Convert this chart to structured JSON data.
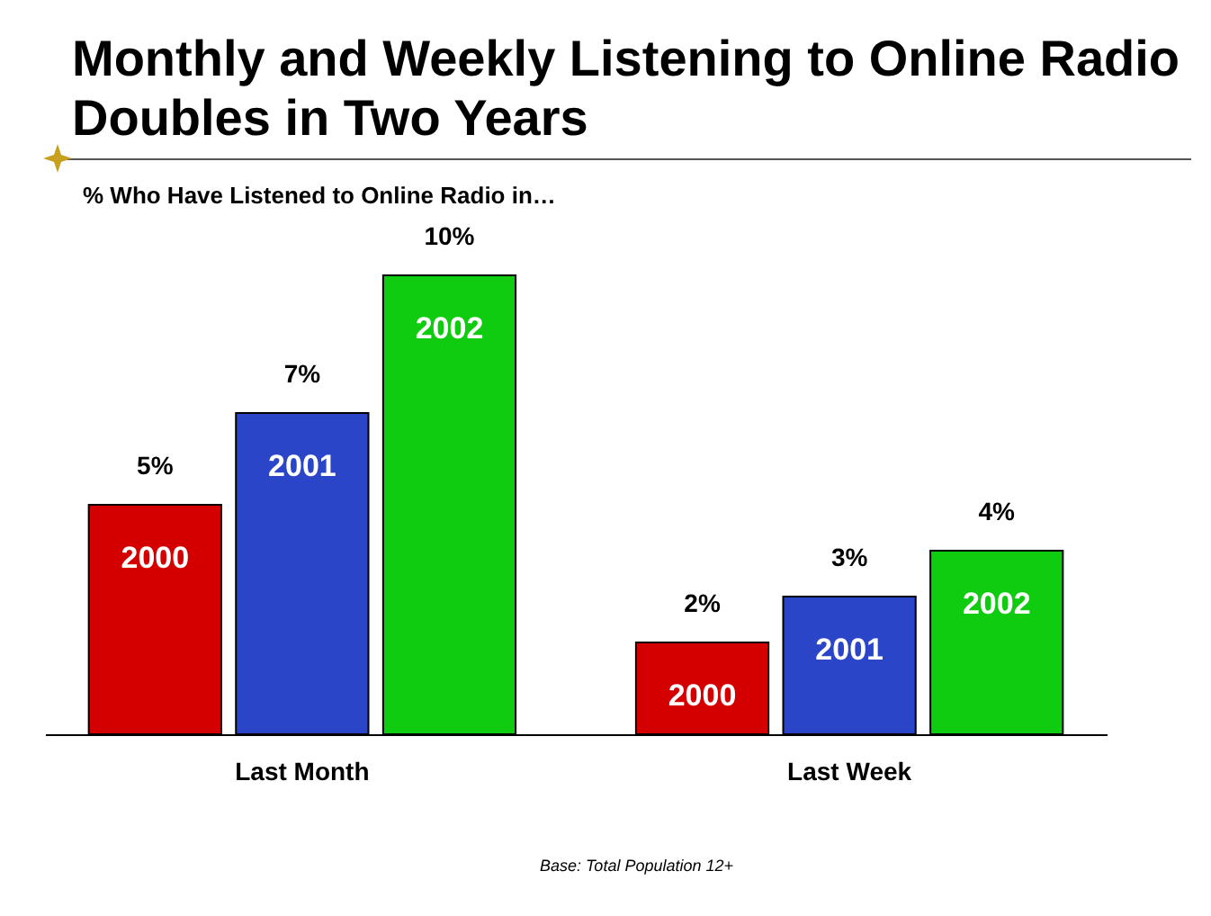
{
  "chart_data": {
    "type": "bar",
    "title": "Monthly and Weekly Listening to Online Radio Doubles in Two Years",
    "subtitle": "% Who Have Listened to Online Radio in…",
    "categories": [
      "Last Month",
      "Last Week"
    ],
    "series": [
      {
        "name": "2000",
        "color": "#d40000",
        "values": [
          5,
          2
        ],
        "value_labels": [
          "5%",
          "2%"
        ]
      },
      {
        "name": "2001",
        "color": "#2a45c8",
        "values": [
          7,
          3
        ],
        "value_labels": [
          "7%",
          "3%"
        ]
      },
      {
        "name": "2002",
        "color": "#10cc10",
        "values": [
          10,
          4
        ],
        "value_labels": [
          "10%",
          "4%"
        ]
      }
    ],
    "annotations": [
      "Base: Total Population 12+"
    ],
    "legend": false,
    "grid": false
  }
}
